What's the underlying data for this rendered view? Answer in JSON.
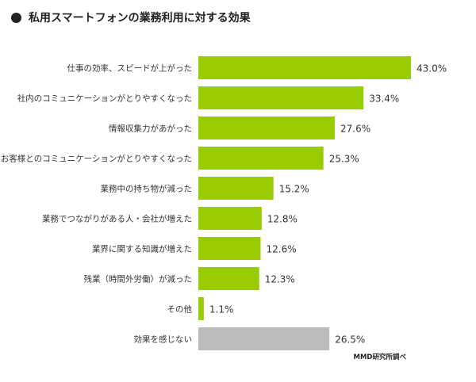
{
  "chart_data": {
    "type": "bar",
    "orientation": "horizontal",
    "title": "私用スマートフォンの業務利用に対する効果",
    "source": "MMD研究所調べ",
    "unit": "%",
    "categories": [
      "仕事の効率、スピードが上がった",
      "社内のコミュニケーションがとりやすくなった",
      "情報収集力があがった",
      "お客様とのコミュニケーションがとりやすくなった",
      "業務中の持ち物が減った",
      "業務でつながりがある人・会社が増えた",
      "業界に関する知識が増えた",
      "残業（時間外労働）が減った",
      "その他",
      "効果を感じない"
    ],
    "values": [
      43.0,
      33.4,
      27.6,
      25.3,
      15.2,
      12.8,
      12.6,
      12.3,
      1.1,
      26.5
    ],
    "value_labels": [
      "43.0%",
      "33.4%",
      "27.6%",
      "25.3%",
      "15.2%",
      "12.8%",
      "12.6%",
      "12.3%",
      "1.1%",
      "26.5%"
    ],
    "colors": {
      "default": "#99cc00",
      "last": "#bbbbbb"
    },
    "grid": false,
    "legend": "none",
    "xlim": [
      0,
      43.0
    ]
  }
}
